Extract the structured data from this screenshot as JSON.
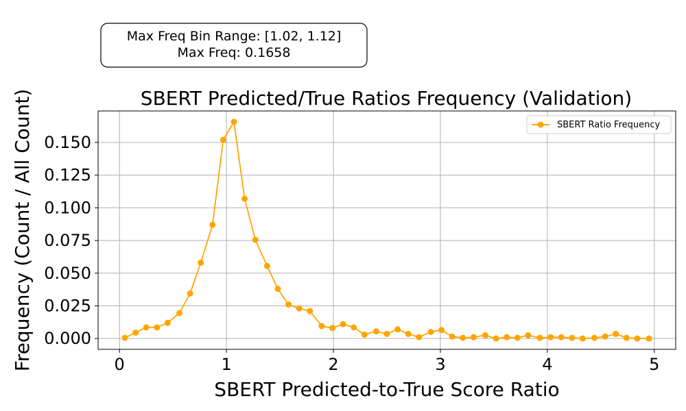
{
  "chart_data": {
    "type": "line",
    "title": "SBERT Predicted/True Ratios Frequency (Validation)",
    "xlabel": "SBERT Predicted-to-True Score Ratio",
    "ylabel": "Frequency (Count / All Count)",
    "xlim": [
      -0.2,
      5.2
    ],
    "ylim": [
      -0.0083,
      0.1741
    ],
    "xticks": [
      0,
      1,
      2,
      3,
      4,
      5
    ],
    "xtick_labels": [
      "0",
      "1",
      "2",
      "3",
      "4",
      "5"
    ],
    "yticks": [
      0.0,
      0.025,
      0.05,
      0.075,
      0.1,
      0.125,
      0.15
    ],
    "ytick_labels": [
      "0.000",
      "0.025",
      "0.050",
      "0.075",
      "0.100",
      "0.125",
      "0.150"
    ],
    "grid": true,
    "legend_position": "upper right",
    "annotation": {
      "line1": "Max Freq Bin Range: [1.02, 1.12]",
      "line2": "Max Freq: 0.1658"
    },
    "series": [
      {
        "name": "SBERT Ratio Frequency",
        "color": "#ffa500",
        "x": [
          0.05,
          0.15,
          0.25,
          0.35,
          0.45,
          0.56,
          0.66,
          0.76,
          0.87,
          0.97,
          1.07,
          1.17,
          1.27,
          1.38,
          1.48,
          1.58,
          1.68,
          1.78,
          1.89,
          1.99,
          2.09,
          2.19,
          2.29,
          2.4,
          2.5,
          2.6,
          2.7,
          2.8,
          2.91,
          3.01,
          3.11,
          3.21,
          3.31,
          3.42,
          3.52,
          3.62,
          3.72,
          3.82,
          3.93,
          4.03,
          4.13,
          4.23,
          4.33,
          4.44,
          4.54,
          4.64,
          4.74,
          4.84,
          4.95
        ],
        "y": [
          0.0005,
          0.0045,
          0.0085,
          0.0085,
          0.012,
          0.0195,
          0.0345,
          0.058,
          0.087,
          0.152,
          0.1658,
          0.107,
          0.0755,
          0.0555,
          0.038,
          0.026,
          0.023,
          0.021,
          0.0095,
          0.008,
          0.011,
          0.0085,
          0.003,
          0.0055,
          0.0035,
          0.007,
          0.0035,
          0.001,
          0.005,
          0.0065,
          0.0015,
          0.0005,
          0.001,
          0.0025,
          0.0,
          0.001,
          0.0005,
          0.0025,
          0.0005,
          0.001,
          0.001,
          0.0005,
          0.0,
          0.0005,
          0.0015,
          0.0035,
          0.0005,
          0.0,
          0.0
        ]
      }
    ]
  }
}
